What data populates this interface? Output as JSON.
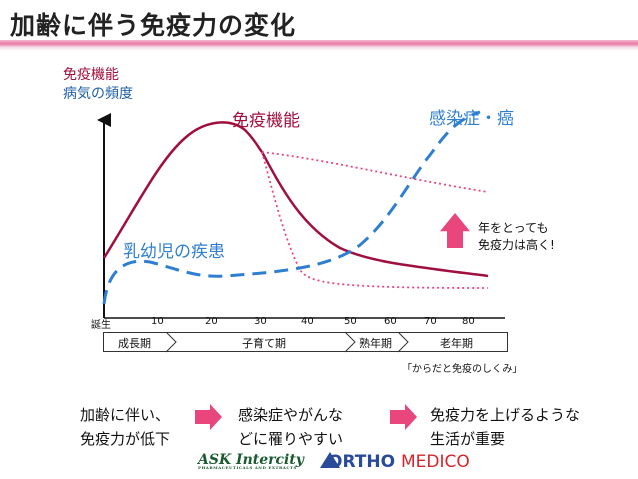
{
  "title": "加齢に伴う免疫力の変化",
  "y_axis": {
    "line1": "免疫機能",
    "line2": "病気の頻度"
  },
  "labels": {
    "immune": "免疫機能",
    "infection": "感染症・癌",
    "infant": "乳幼児の疾患",
    "aging_line1": "年をとっても",
    "aging_line2": "免疫力は高く!"
  },
  "x_ticks": [
    "誕生",
    "10",
    "20",
    "30",
    "40",
    "50",
    "60",
    "70",
    "80"
  ],
  "stages": [
    "成長期",
    "子育て期",
    "熟年期",
    "老年期"
  ],
  "source": "「からだと免疫のしくみ」",
  "steps": [
    {
      "line1": "加齢に伴い、",
      "line2": "免疫力が低下"
    },
    {
      "line1": "感染症やがんな",
      "line2": "どに罹りやすい"
    },
    {
      "line1": "免疫力を上げるような",
      "line2": "生活が重要"
    }
  ],
  "logos": {
    "ask": "ASK Intercity",
    "ask_sub": "PHARMACEUTICALS AND EXTRACTS",
    "ortho": "ORTHO",
    "medico": "MEDICO"
  },
  "colors": {
    "immune": "#a0103e",
    "infection": "#2f7fd0",
    "accent_pink": "#e8467c",
    "rule": "#e97aa3"
  }
}
